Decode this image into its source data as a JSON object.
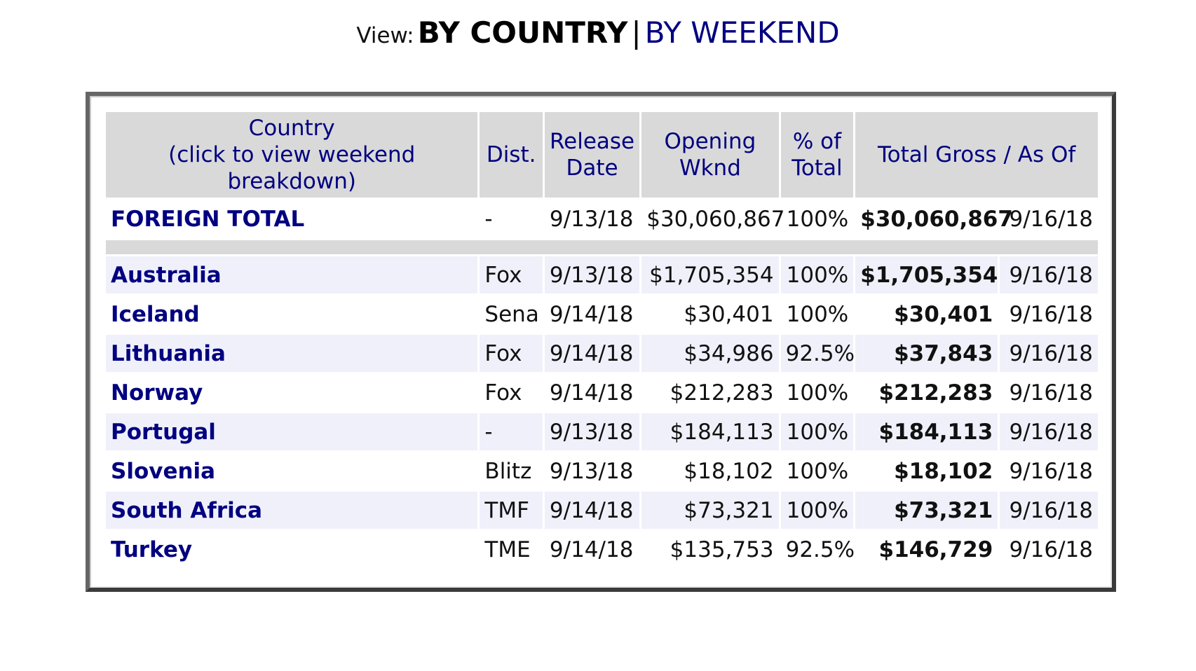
{
  "view": {
    "label": "View:",
    "active": "BY COUNTRY",
    "separator": "|",
    "link": "BY WEEKEND"
  },
  "table": {
    "headers": {
      "country_line1": "Country",
      "country_line2": "(click to view weekend breakdown)",
      "dist": "Dist.",
      "release_line1": "Release",
      "release_line2": "Date",
      "opening_line1": "Opening",
      "opening_line2": "Wknd",
      "pct_line1": "% of",
      "pct_line2": "Total",
      "total_gross": "Total Gross",
      "total_sep": "/",
      "as_of": "As Of"
    },
    "foreign_total": {
      "country": "FOREIGN TOTAL",
      "dist": "-",
      "release": "9/13/18",
      "opening": "$30,060,867",
      "pct": "100%",
      "gross": "$30,060,867",
      "as_of": "9/16/18"
    },
    "rows": [
      {
        "country": "Australia",
        "dist": "Fox",
        "release": "9/13/18",
        "opening": "$1,705,354",
        "pct": "100%",
        "gross": "$1,705,354",
        "as_of": "9/16/18"
      },
      {
        "country": "Iceland",
        "dist": "Sena",
        "release": "9/14/18",
        "opening": "$30,401",
        "pct": "100%",
        "gross": "$30,401",
        "as_of": "9/16/18"
      },
      {
        "country": "Lithuania",
        "dist": "Fox",
        "release": "9/14/18",
        "opening": "$34,986",
        "pct": "92.5%",
        "gross": "$37,843",
        "as_of": "9/16/18"
      },
      {
        "country": "Norway",
        "dist": "Fox",
        "release": "9/14/18",
        "opening": "$212,283",
        "pct": "100%",
        "gross": "$212,283",
        "as_of": "9/16/18"
      },
      {
        "country": "Portugal",
        "dist": "-",
        "release": "9/13/18",
        "opening": "$184,113",
        "pct": "100%",
        "gross": "$184,113",
        "as_of": "9/16/18"
      },
      {
        "country": "Slovenia",
        "dist": "Blitz",
        "release": "9/13/18",
        "opening": "$18,102",
        "pct": "100%",
        "gross": "$18,102",
        "as_of": "9/16/18"
      },
      {
        "country": "South Africa",
        "dist": "TMF",
        "release": "9/14/18",
        "opening": "$73,321",
        "pct": "100%",
        "gross": "$73,321",
        "as_of": "9/16/18"
      },
      {
        "country": "Turkey",
        "dist": "TME",
        "release": "9/14/18",
        "opening": "$135,753",
        "pct": "92.5%",
        "gross": "$146,729",
        "as_of": "9/16/18"
      }
    ]
  }
}
